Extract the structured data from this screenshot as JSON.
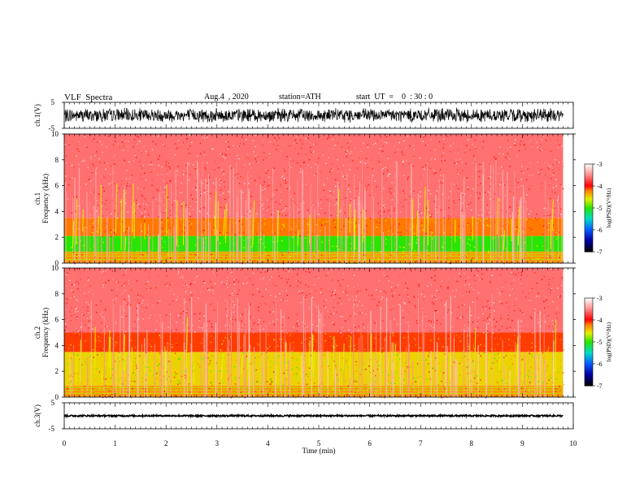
{
  "header": {
    "title": "VLF  Spectra",
    "date": "Aug.4  , 2020",
    "station": "station=ATH",
    "start": "start  UT  =    0  : 30 : 0"
  },
  "chart_data": [
    {
      "type": "line",
      "panel": "ch1-waveform",
      "ylabel": "ch.1(V)",
      "ylim": [
        -5,
        5
      ],
      "yticks": [
        "5",
        "-5"
      ],
      "xlim": [
        0,
        10
      ],
      "x_extent_min": 9.8,
      "amplitude_range": [
        -3,
        3
      ],
      "color": "#000000"
    },
    {
      "type": "heatmap",
      "panel": "ch1-spectrogram",
      "ylabel": "ch.1 Frequency (kHz)",
      "ylim": [
        0,
        10
      ],
      "yticks": [
        "0",
        "2",
        "4",
        "6",
        "8",
        "10"
      ],
      "xlim": [
        0,
        10
      ],
      "colorbar": {
        "label": "log(PSD)(V²/Hz)",
        "range": [
          -7,
          -3
        ],
        "ticks": [
          "-3",
          "-4",
          "-5",
          "-6",
          "-7"
        ]
      },
      "bands_khz": [
        {
          "from": 0,
          "to": 0.9,
          "level": -4.3
        },
        {
          "from": 0.9,
          "to": 2.1,
          "level": -5.0
        },
        {
          "from": 2.1,
          "to": 3.5,
          "level": -4.2
        },
        {
          "from": 3.5,
          "to": 10,
          "level": -3.6
        }
      ]
    },
    {
      "type": "heatmap",
      "panel": "ch2-spectrogram",
      "ylabel": "ch.2 Frequency (kHz)",
      "ylim": [
        0,
        10
      ],
      "yticks": [
        "0",
        "2",
        "4",
        "6",
        "8",
        "10"
      ],
      "xlim": [
        0,
        10
      ],
      "colorbar": {
        "label": "log(PSD)(V²/Hz)",
        "range": [
          -7,
          -3
        ],
        "ticks": [
          "-3",
          "-4",
          "-5",
          "-6",
          "-7"
        ]
      },
      "bands_khz": [
        {
          "from": 0,
          "to": 0.9,
          "level": -4.3
        },
        {
          "from": 0.9,
          "to": 3.5,
          "level": -4.5
        },
        {
          "from": 3.5,
          "to": 5,
          "level": -4.1
        },
        {
          "from": 5,
          "to": 10,
          "level": -3.6
        }
      ]
    },
    {
      "type": "line",
      "panel": "ch3-waveform",
      "ylabel": "ch.3(V)",
      "ylim": [
        -5,
        5
      ],
      "yticks": [
        "5",
        "-5"
      ],
      "xlim": [
        0,
        10
      ],
      "x_extent_min": 9.8,
      "amplitude_range": [
        -0.3,
        0.3
      ],
      "xlabel": "Time  (min)",
      "xticks": [
        "0",
        "1",
        "2",
        "3",
        "4",
        "5",
        "6",
        "7",
        "8",
        "9",
        "10"
      ],
      "color": "#000000"
    }
  ]
}
